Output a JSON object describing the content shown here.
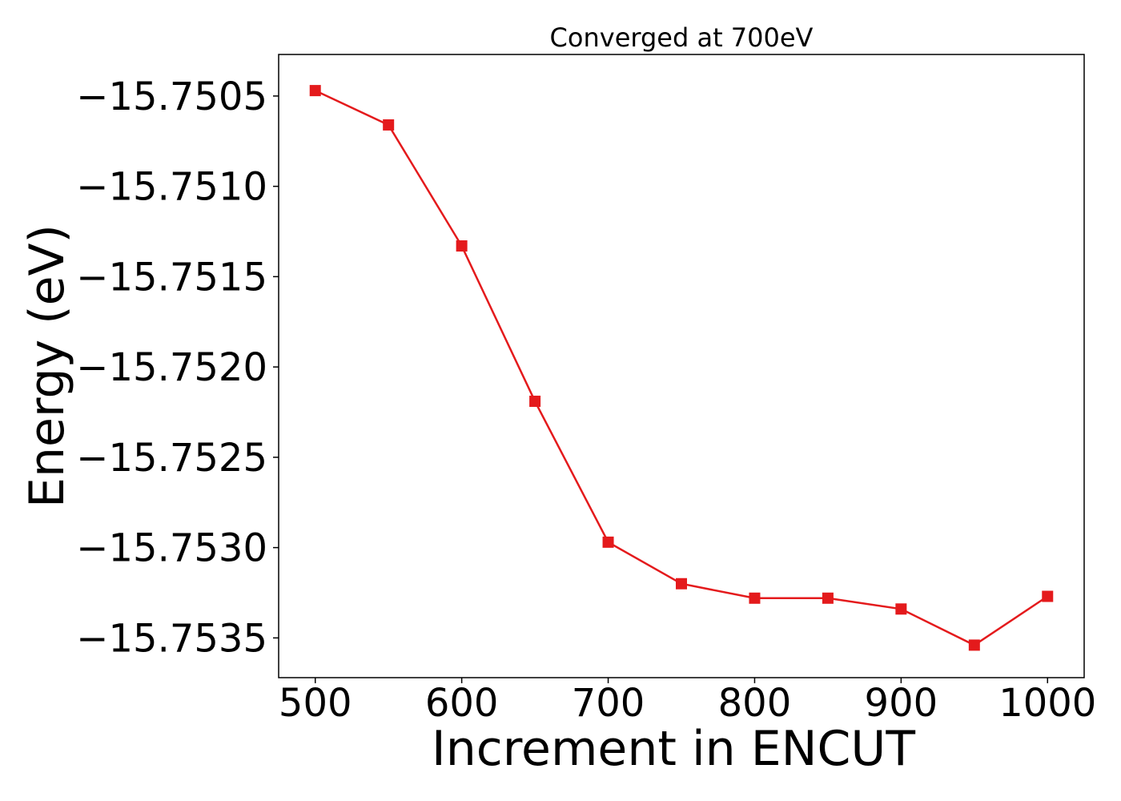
{
  "chart_data": {
    "type": "line",
    "title": "Converged at 700eV",
    "xlabel": "Increment in ENCUT",
    "ylabel": "Energy (eV)",
    "xlim": [
      475,
      1025
    ],
    "ylim": [
      -15.75372,
      -15.75027
    ],
    "xticks": [
      500,
      600,
      700,
      800,
      900,
      1000
    ],
    "xtick_labels": [
      "500",
      "600",
      "700",
      "800",
      "900",
      "1000"
    ],
    "yticks": [
      -15.7505,
      -15.751,
      -15.7515,
      -15.752,
      -15.7525,
      -15.753,
      -15.7535
    ],
    "ytick_labels": [
      "−15.7505",
      "−15.7510",
      "−15.7515",
      "−15.7520",
      "−15.7525",
      "−15.7530",
      "−15.7535"
    ],
    "grid": false,
    "series": [
      {
        "color": "#e41a1c",
        "marker": "square",
        "x": [
          500,
          550,
          600,
          650,
          700,
          750,
          800,
          850,
          900,
          950,
          1000
        ],
        "y": [
          -15.75047,
          -15.75066,
          -15.75133,
          -15.75219,
          -15.75297,
          -15.7532,
          -15.75328,
          -15.75328,
          -15.75334,
          -15.75354,
          -15.75327
        ]
      }
    ]
  }
}
